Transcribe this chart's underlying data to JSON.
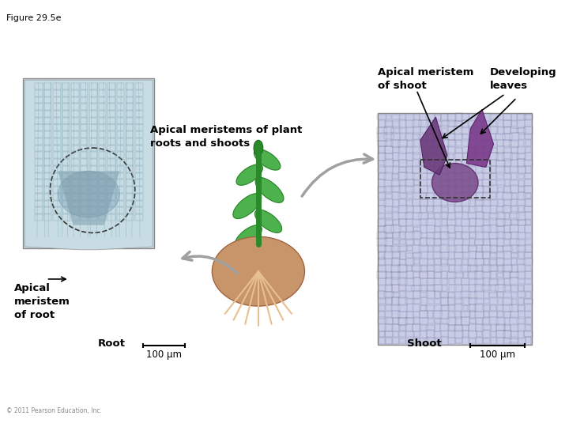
{
  "figure_label": "Figure 29.5e",
  "title_apical_shoot": "Apical meristem\nof shoot",
  "title_developing_leaves": "Developing\nleaves",
  "title_apical_meristems": "Apical meristems of plant\nroots and shoots",
  "title_apical_root": "Apical\nmeristem\nof root",
  "label_root": "Root",
  "label_shoot": "Shoot",
  "scale_bar": "100 μm",
  "copyright": "© 2011 Pearson Education, Inc.",
  "bg_color": "#ffffff",
  "text_color": "#000000",
  "bold_color": "#1a1a1a",
  "root_photo_color": "#8fb8c8",
  "root_photo_dark": "#5a7a8a",
  "root_photo_bg": "#c8dce4",
  "shoot_photo_bg": "#c8cce0",
  "shoot_photo_dark": "#6a4a7a",
  "plant_green": "#2a8a2a",
  "plant_root_color": "#c8956a",
  "arrow_color": "#a0a0a0"
}
